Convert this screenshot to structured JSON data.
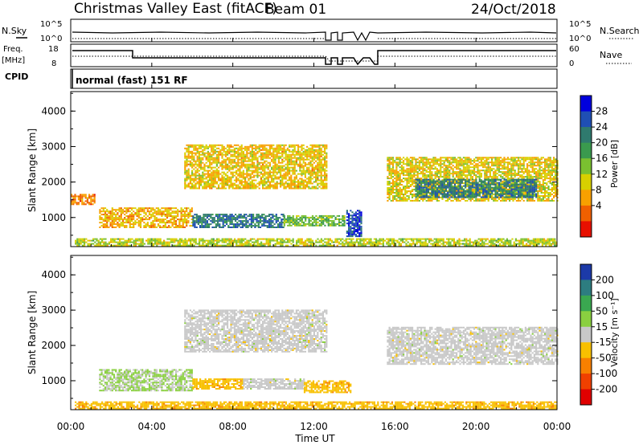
{
  "header": {
    "title": "Christmas Valley East (fitACF)",
    "beam": "Beam 01",
    "date": "24/Oct/2018"
  },
  "status": {
    "nsky_label": "N.Sky",
    "nsearch_label": "N.Search",
    "nsky_ticks": [
      "10^5",
      "10^0"
    ],
    "nsearch_ticks": [
      "10^5",
      "10^0"
    ],
    "freq_label": [
      "Freq.",
      "[MHz]"
    ],
    "freq_ticks": [
      "18",
      "8"
    ],
    "nave_label": "Nave",
    "nave_ticks": [
      "60",
      "0"
    ],
    "cpid_label": "CPID",
    "cpid_text": "normal (fast) 151 RF"
  },
  "power_panel": {
    "ylabel": "Slant Range [km]",
    "yticks": [
      "4000",
      "3000",
      "2000",
      "1000"
    ],
    "colorbar_label": "Power [dB]",
    "colorbar_ticks": [
      "28",
      "24",
      "20",
      "16",
      "12",
      "8",
      "4"
    ],
    "colorbar_colors": [
      "#0000dd",
      "#1f4fb4",
      "#2f7a6e",
      "#3a9a4e",
      "#7ac030",
      "#d8d000",
      "#f8a000",
      "#f06000",
      "#e81000"
    ]
  },
  "velocity_panel": {
    "ylabel": "Slant Range [km]",
    "yticks": [
      "4000",
      "3000",
      "2000",
      "1000"
    ],
    "colorbar_label": "Velocity [m s⁻¹]",
    "colorbar_ticks": [
      "200",
      "100",
      "50",
      "15",
      "-15",
      "-50",
      "-100",
      "-200"
    ],
    "colorbar_colors": [
      "#1c3aa8",
      "#2d7d80",
      "#3aa850",
      "#8ad040",
      "#c8c8c8",
      "#f8c000",
      "#f88000",
      "#f04000",
      "#e00000"
    ]
  },
  "xaxis": {
    "ticks": [
      "00:00",
      "04:00",
      "08:00",
      "12:00",
      "16:00",
      "20:00",
      "00:00"
    ],
    "label": "Time UT"
  },
  "chart_data": [
    {
      "type": "heatmap",
      "panel": "power",
      "ylabel": "Slant Range [km]",
      "ylim": [
        180,
        4550
      ],
      "xlim": [
        "00:00",
        "24:00"
      ],
      "colorbar_range": [
        0,
        32
      ],
      "patches": [
        {
          "t0": 1.4,
          "t1": 6.0,
          "r0": 700,
          "r1": 1250,
          "level": 10
        },
        {
          "t0": 6.0,
          "t1": 10.5,
          "r0": 700,
          "r1": 1100,
          "level": 24
        },
        {
          "t0": 10.5,
          "t1": 13.5,
          "r0": 750,
          "r1": 1050,
          "level": 17
        },
        {
          "t0": 13.6,
          "t1": 14.3,
          "r0": 450,
          "r1": 1200,
          "level": 27
        },
        {
          "t0": 5.6,
          "t1": 12.6,
          "r0": 1800,
          "r1": 3050,
          "level": 11
        },
        {
          "t0": 0.0,
          "t1": 1.2,
          "r0": 1350,
          "r1": 1650,
          "level": 7
        },
        {
          "t0": 15.6,
          "t1": 24.0,
          "r0": 1450,
          "r1": 2700,
          "level": 12
        },
        {
          "t0": 17.0,
          "t1": 23.0,
          "r0": 1550,
          "r1": 2050,
          "level": 23
        },
        {
          "t0": 0.2,
          "t1": 24.0,
          "r0": 190,
          "r1": 380,
          "level": 14
        }
      ]
    },
    {
      "type": "heatmap",
      "panel": "velocity",
      "ylabel": "Slant Range [km]",
      "ylim": [
        180,
        4550
      ],
      "xlim": [
        "00:00",
        "24:00"
      ],
      "colorbar_range": [
        -250,
        250
      ],
      "patches": [
        {
          "t0": 1.4,
          "t1": 6.0,
          "r0": 700,
          "r1": 1300,
          "level": 30
        },
        {
          "t0": 6.0,
          "t1": 8.5,
          "r0": 750,
          "r1": 1050,
          "level": -60
        },
        {
          "t0": 8.5,
          "t1": 11.5,
          "r0": 750,
          "r1": 1050,
          "level": 0
        },
        {
          "t0": 11.5,
          "t1": 13.8,
          "r0": 650,
          "r1": 1000,
          "level": -60
        },
        {
          "t0": 5.6,
          "t1": 12.6,
          "r0": 1800,
          "r1": 3000,
          "level": 0
        },
        {
          "t0": 15.6,
          "t1": 24.0,
          "r0": 1450,
          "r1": 2500,
          "level": 0
        },
        {
          "t0": 0.2,
          "t1": 24.0,
          "r0": 190,
          "r1": 380,
          "level": -60
        }
      ]
    }
  ]
}
